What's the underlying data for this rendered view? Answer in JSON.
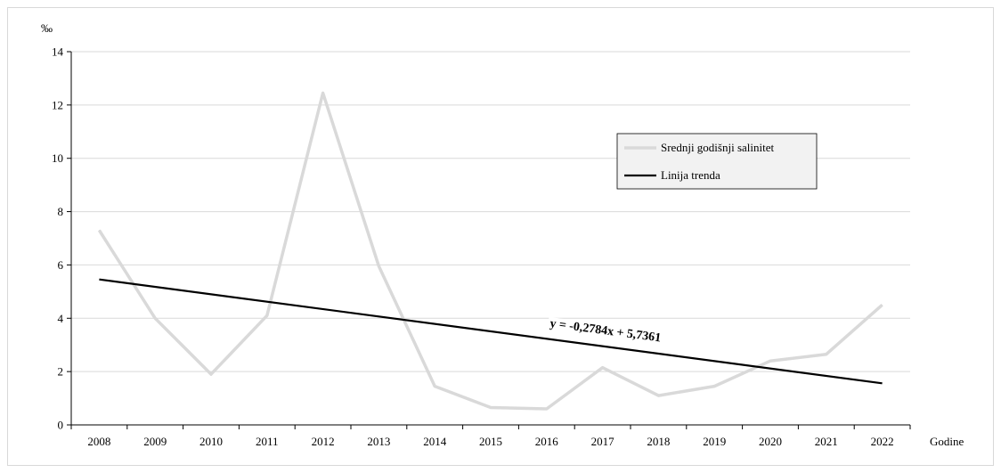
{
  "chart_data": {
    "type": "line",
    "ylabel": "‰",
    "xlabel": "Godine",
    "ylim": [
      0,
      14
    ],
    "yticks": [
      0,
      2,
      4,
      6,
      8,
      10,
      12,
      14
    ],
    "categories": [
      "2008",
      "2009",
      "2010",
      "2011",
      "2012",
      "2013",
      "2014",
      "2015",
      "2016",
      "2017",
      "2018",
      "2019",
      "2020",
      "2021",
      "2022"
    ],
    "series": [
      {
        "name": "Srednji godišnji salinitet",
        "color": "#d9d9d9",
        "values": [
          7.3,
          4.0,
          1.9,
          4.1,
          12.45,
          5.95,
          1.45,
          0.65,
          0.6,
          2.15,
          1.1,
          1.45,
          2.4,
          2.65,
          4.5
        ]
      },
      {
        "name": "Linija trenda",
        "color": "#000000",
        "slope": -0.2784,
        "intercept": 5.7361
      }
    ],
    "annotation": "y = -0,2784x + 5,7361",
    "grid": true,
    "legend_position": "upper-right"
  }
}
